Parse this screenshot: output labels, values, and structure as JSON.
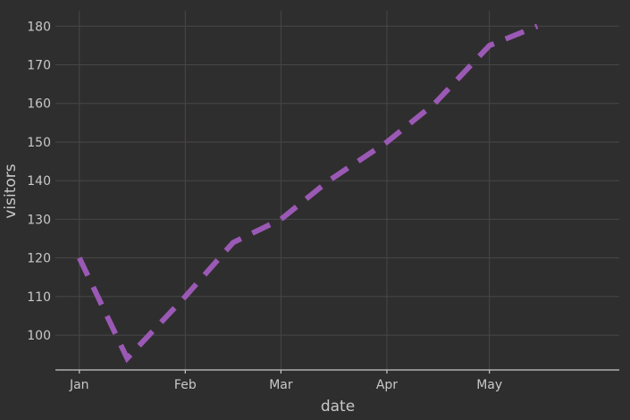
{
  "chart_data": {
    "type": "line",
    "xlabel": "date",
    "ylabel": "visitors",
    "x_ticks": [
      {
        "label": "Jan",
        "date": "2023-01-01"
      },
      {
        "label": "Feb",
        "date": "2023-02-01"
      },
      {
        "label": "Mar",
        "date": "2023-03-01"
      },
      {
        "label": "Apr",
        "date": "2023-04-01"
      },
      {
        "label": "May",
        "date": "2023-05-01"
      }
    ],
    "y_ticks": [
      100,
      110,
      120,
      130,
      140,
      150,
      160,
      170,
      180
    ],
    "xlim": [
      "2022-12-25",
      "2023-06-08"
    ],
    "ylim": [
      91,
      184
    ],
    "grid": true,
    "line_style": "dashed",
    "series": [
      {
        "color": "#9b59b6",
        "points": [
          {
            "x": "2023-01-01",
            "y": 120
          },
          {
            "x": "2023-01-15",
            "y": 94
          },
          {
            "x": "2023-02-01",
            "y": 110
          },
          {
            "x": "2023-02-15",
            "y": 124
          },
          {
            "x": "2023-03-01",
            "y": 130
          },
          {
            "x": "2023-03-15",
            "y": 140
          },
          {
            "x": "2023-04-01",
            "y": 150
          },
          {
            "x": "2023-04-15",
            "y": 160
          },
          {
            "x": "2023-05-01",
            "y": 175
          },
          {
            "x": "2023-05-15",
            "y": 180
          }
        ]
      }
    ]
  }
}
